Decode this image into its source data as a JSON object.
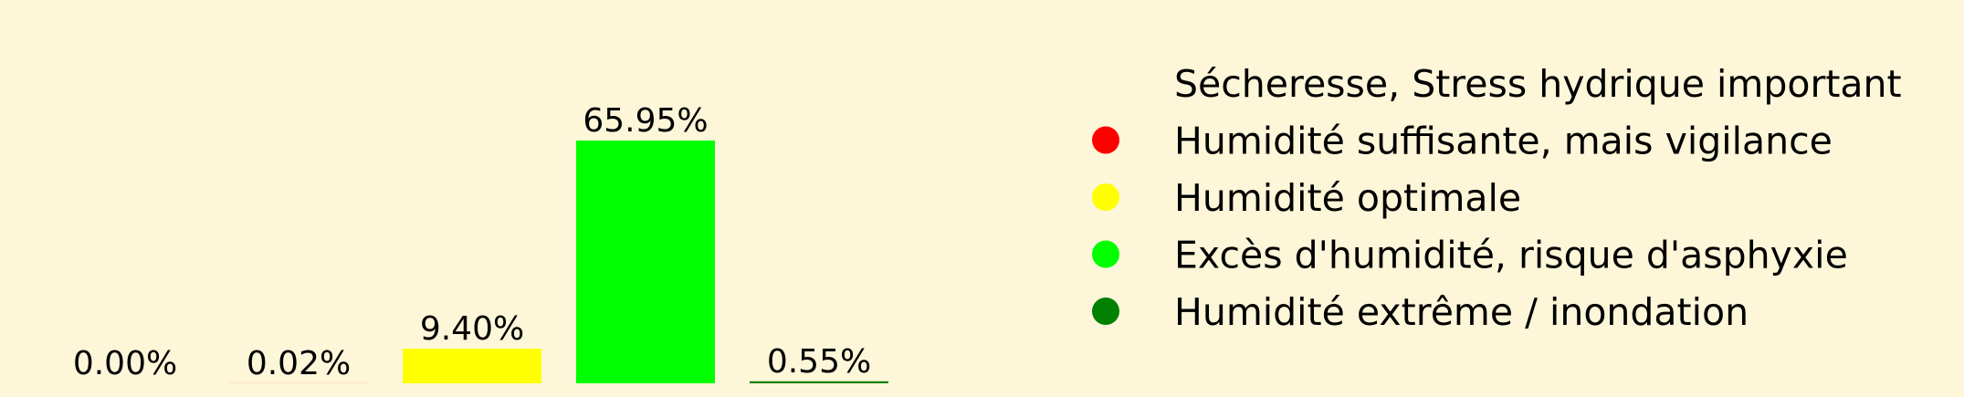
{
  "chart_data": {
    "type": "bar",
    "categories": [
      "Sécheresse, Stress hydrique important",
      "Humidité suffisante, mais vigilance",
      "Humidité optimale",
      "Excès d'humidité, risque d'asphyxie",
      "Humidité extrême / inondation"
    ],
    "values": [
      0.0,
      0.02,
      9.4,
      65.95,
      0.55
    ],
    "value_labels": [
      "0.00%",
      "0.02%",
      "9.40%",
      "65.95%",
      "0.55%"
    ],
    "colors": [
      "#fdf6d9",
      "#ff0000",
      "#ffff00",
      "#00ff00",
      "#008000"
    ],
    "legend": {
      "placement": "right",
      "entries": [
        {
          "label": "Sécheresse, Stress hydrique important",
          "color": "#fdf6d9"
        },
        {
          "label": "Humidité suffisante, mais vigilance",
          "color": "#ff0000"
        },
        {
          "label": "Humidité optimale",
          "color": "#ffff00"
        },
        {
          "label": "Excès d'humidité, risque d'asphyxie",
          "color": "#00ff00"
        },
        {
          "label": "Humidité extrême / inondation",
          "color": "#008000"
        }
      ]
    },
    "title": "",
    "xlabel": "",
    "ylabel": "",
    "ylim": [
      0,
      70
    ],
    "grid": false,
    "background": "#fdf6d9"
  }
}
